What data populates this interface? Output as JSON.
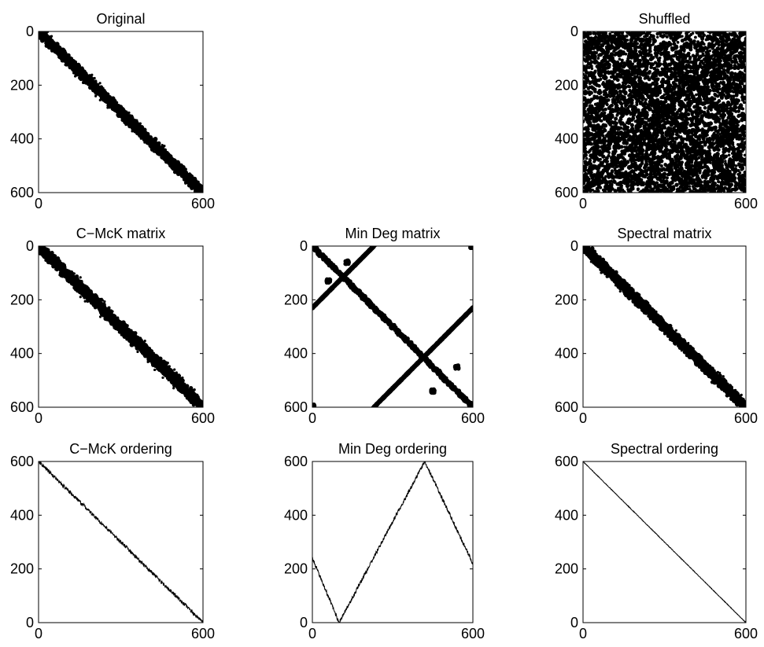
{
  "figure_layout": "3x3 grid; top-middle position empty",
  "chart_data": [
    {
      "id": "original",
      "type": "scatter",
      "title": "Original",
      "xlabel": "",
      "ylabel": "",
      "xlim": [
        0,
        600
      ],
      "ylim": [
        600,
        0
      ],
      "yaxis_direction": "reversed",
      "xticks": [
        0,
        600
      ],
      "yticks": [
        0,
        200,
        400,
        600
      ],
      "pattern": "banded",
      "band_halfwidth": 14,
      "grid": false,
      "series": [
        {
          "values": []
        }
      ],
      "marker_color": "#000000"
    },
    {
      "id": "shuffled",
      "type": "scatter",
      "title": "Shuffled",
      "xlabel": "",
      "ylabel": "",
      "xlim": [
        0,
        600
      ],
      "ylim": [
        600,
        0
      ],
      "yaxis_direction": "reversed",
      "xticks": [
        0,
        600
      ],
      "yticks": [
        0,
        200,
        400,
        600
      ],
      "pattern": "random",
      "grid": false,
      "marker_color": "#000000"
    },
    {
      "id": "cmck-matrix",
      "type": "scatter",
      "title": "C−McK matrix",
      "xlabel": "",
      "ylabel": "",
      "xlim": [
        0,
        600
      ],
      "ylim": [
        600,
        0
      ],
      "yaxis_direction": "reversed",
      "xticks": [
        0,
        600
      ],
      "yticks": [
        0,
        200,
        400,
        600
      ],
      "pattern": "banded",
      "band_halfwidth": 16,
      "grid": false,
      "marker_color": "#000000"
    },
    {
      "id": "mindeg-matrix",
      "type": "scatter",
      "title": "Min Deg matrix",
      "xlabel": "",
      "ylabel": "",
      "xlim": [
        0,
        600
      ],
      "ylim": [
        600,
        0
      ],
      "yaxis_direction": "reversed",
      "xticks": [
        0,
        600
      ],
      "yticks": [
        0,
        200,
        400,
        600
      ],
      "pattern": "x-shape",
      "grid": false,
      "marker_color": "#000000"
    },
    {
      "id": "spectral-matrix",
      "type": "scatter",
      "title": "Spectral matrix",
      "xlabel": "",
      "ylabel": "",
      "xlim": [
        0,
        600
      ],
      "ylim": [
        600,
        0
      ],
      "yaxis_direction": "reversed",
      "xticks": [
        0,
        600
      ],
      "yticks": [
        0,
        200,
        400,
        600
      ],
      "pattern": "banded",
      "band_halfwidth": 14,
      "grid": false,
      "marker_color": "#000000"
    },
    {
      "id": "cmck-ordering",
      "type": "line",
      "title": "C−McK ordering",
      "xlabel": "",
      "ylabel": "",
      "xlim": [
        0,
        600
      ],
      "ylim": [
        0,
        600
      ],
      "xticks": [
        0,
        600
      ],
      "yticks": [
        0,
        200,
        400,
        600
      ],
      "grid": false,
      "series": [
        {
          "x": [
            0,
            600
          ],
          "y": [
            600,
            0
          ]
        }
      ],
      "noise": "medium"
    },
    {
      "id": "mindeg-ordering",
      "type": "line",
      "title": "Min Deg ordering",
      "xlabel": "",
      "ylabel": "",
      "xlim": [
        0,
        600
      ],
      "ylim": [
        0,
        600
      ],
      "xticks": [
        0,
        600
      ],
      "yticks": [
        0,
        200,
        400,
        600
      ],
      "grid": false,
      "series": [
        {
          "x": [
            0,
            100,
            420,
            600
          ],
          "y": [
            240,
            0,
            600,
            220
          ]
        }
      ],
      "noise": "medium"
    },
    {
      "id": "spectral-ordering",
      "type": "line",
      "title": "Spectral ordering",
      "xlabel": "",
      "ylabel": "",
      "xlim": [
        0,
        600
      ],
      "ylim": [
        0,
        600
      ],
      "xticks": [
        0,
        600
      ],
      "yticks": [
        0,
        200,
        400,
        600
      ],
      "grid": false,
      "series": [
        {
          "x": [
            0,
            600
          ],
          "y": [
            600,
            0
          ]
        }
      ],
      "noise": "low"
    }
  ]
}
